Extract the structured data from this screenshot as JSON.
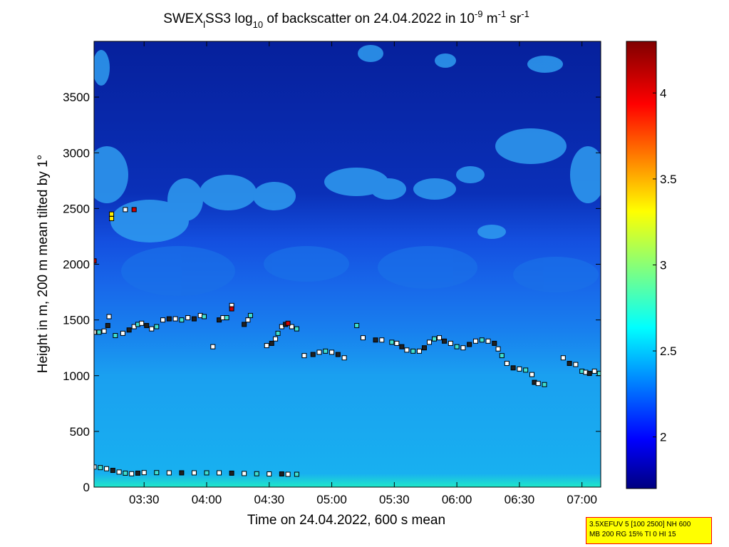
{
  "chart_data": {
    "type": "heatmap",
    "title_parts": [
      "SWEX",
      "l",
      "SS3 log",
      "10",
      " of backscatter on 24.04.2022 in 10",
      "-9",
      " m",
      "-1",
      " sr",
      "-1"
    ],
    "xlabel": "Time on 24.04.2022, 600 s mean",
    "ylabel": "Height in m, 200 m mean tilted by 1°",
    "x_ticks": [
      "03:30",
      "04:00",
      "04:30",
      "05:00",
      "05:30",
      "06:00",
      "06:30",
      "07:00"
    ],
    "x_tick_hours": [
      3.5,
      4.0,
      4.5,
      5.0,
      5.5,
      6.0,
      6.5,
      7.0
    ],
    "xlim_hours": [
      3.1,
      7.15
    ],
    "y_ticks": [
      "0",
      "500",
      "1000",
      "1500",
      "2000",
      "2500",
      "3000",
      "3500"
    ],
    "y_tick_values": [
      0,
      500,
      1000,
      1500,
      2000,
      2500,
      3000,
      3500
    ],
    "ylim": [
      0,
      4000
    ],
    "colorbar": {
      "ticks": [
        "2",
        "2.5",
        "3",
        "3.5",
        "4"
      ],
      "tick_values": [
        2,
        2.5,
        3,
        3.5,
        4
      ],
      "range": [
        1.7,
        4.3
      ],
      "colormap": "jet"
    },
    "cloud_base_series": [
      {
        "name": "",
        "points": [
          [
            3.1,
            1390
          ],
          [
            3.14,
            1390
          ],
          [
            3.18,
            1400
          ],
          [
            3.21,
            1450
          ],
          [
            3.22,
            1530
          ],
          [
            3.27,
            1360
          ],
          [
            3.33,
            1380
          ],
          [
            3.38,
            1410
          ],
          [
            3.42,
            1440
          ],
          [
            3.45,
            1460
          ],
          [
            3.48,
            1470
          ],
          [
            3.52,
            1450
          ],
          [
            3.56,
            1420
          ],
          [
            3.6,
            1440
          ],
          [
            3.65,
            1500
          ],
          [
            3.7,
            1510
          ],
          [
            3.75,
            1510
          ],
          [
            3.8,
            1500
          ],
          [
            3.85,
            1520
          ],
          [
            3.9,
            1510
          ],
          [
            3.95,
            1540
          ],
          [
            3.98,
            1530
          ],
          [
            4.05,
            1260
          ],
          [
            4.1,
            1500
          ],
          [
            4.13,
            1520
          ],
          [
            4.16,
            1520
          ],
          [
            4.2,
            1630
          ],
          [
            4.3,
            1460
          ],
          [
            4.33,
            1500
          ],
          [
            4.35,
            1540
          ],
          [
            4.48,
            1270
          ],
          [
            4.52,
            1290
          ],
          [
            4.55,
            1330
          ],
          [
            4.57,
            1380
          ],
          [
            4.6,
            1440
          ],
          [
            4.63,
            1460
          ],
          [
            4.68,
            1440
          ],
          [
            4.72,
            1420
          ],
          [
            4.78,
            1180
          ],
          [
            4.85,
            1190
          ],
          [
            4.9,
            1210
          ],
          [
            4.95,
            1220
          ],
          [
            5.0,
            1210
          ],
          [
            5.05,
            1190
          ],
          [
            5.1,
            1160
          ],
          [
            5.2,
            1450
          ],
          [
            5.25,
            1340
          ],
          [
            5.35,
            1320
          ],
          [
            5.4,
            1320
          ],
          [
            5.48,
            1300
          ],
          [
            5.52,
            1290
          ],
          [
            5.56,
            1260
          ],
          [
            5.6,
            1230
          ],
          [
            5.65,
            1220
          ],
          [
            5.7,
            1220
          ],
          [
            5.74,
            1250
          ],
          [
            5.78,
            1300
          ],
          [
            5.82,
            1330
          ],
          [
            5.86,
            1340
          ],
          [
            5.9,
            1310
          ],
          [
            5.95,
            1290
          ],
          [
            6.0,
            1260
          ],
          [
            6.05,
            1250
          ],
          [
            6.1,
            1280
          ],
          [
            6.15,
            1310
          ],
          [
            6.2,
            1320
          ],
          [
            6.25,
            1310
          ],
          [
            6.3,
            1290
          ],
          [
            6.33,
            1240
          ],
          [
            6.36,
            1180
          ],
          [
            6.4,
            1110
          ],
          [
            6.45,
            1070
          ],
          [
            6.5,
            1060
          ],
          [
            6.55,
            1050
          ],
          [
            6.6,
            1010
          ],
          [
            6.62,
            940
          ],
          [
            6.65,
            930
          ],
          [
            6.7,
            920
          ],
          [
            6.85,
            1160
          ],
          [
            6.9,
            1110
          ],
          [
            6.95,
            1100
          ],
          [
            7.0,
            1040
          ],
          [
            7.03,
            1030
          ],
          [
            7.06,
            1020
          ],
          [
            7.1,
            1040
          ],
          [
            7.14,
            1020
          ]
        ]
      },
      {
        "name": "",
        "points": [
          [
            3.1,
            180
          ],
          [
            3.15,
            175
          ],
          [
            3.2,
            165
          ],
          [
            3.25,
            150
          ],
          [
            3.3,
            135
          ],
          [
            3.35,
            125
          ],
          [
            3.4,
            120
          ],
          [
            3.45,
            125
          ],
          [
            3.5,
            130
          ],
          [
            3.6,
            130
          ],
          [
            3.7,
            128
          ],
          [
            3.8,
            128
          ],
          [
            3.9,
            128
          ],
          [
            4.0,
            128
          ],
          [
            4.1,
            128
          ],
          [
            4.2,
            125
          ],
          [
            4.3,
            122
          ],
          [
            4.4,
            120
          ],
          [
            4.5,
            118
          ],
          [
            4.6,
            118
          ],
          [
            4.65,
            115
          ],
          [
            4.72,
            115
          ]
        ]
      }
    ],
    "strong_points": [
      [
        3.1,
        2030
      ],
      [
        3.24,
        2410
      ],
      [
        3.35,
        2490
      ],
      [
        3.42,
        2490
      ],
      [
        4.2,
        1600
      ],
      [
        4.65,
        1470
      ],
      [
        3.24,
        2450
      ]
    ]
  },
  "info_box": {
    "line1": "3.5XEFUV 5 [100 2500] NH 600",
    "line2": "MB 200 RG 15% TI 0 HI 15"
  }
}
